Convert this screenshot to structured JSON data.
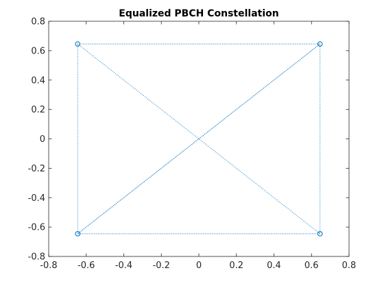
{
  "chart_data": {
    "type": "line",
    "title": "Equalized PBCH Constellation",
    "xlabel": "",
    "ylabel": "",
    "xlim": [
      -0.8,
      0.8
    ],
    "ylim": [
      -0.8,
      0.8
    ],
    "xticks": [
      -0.8,
      -0.6,
      -0.4,
      -0.2,
      0,
      0.2,
      0.4,
      0.6,
      0.8
    ],
    "yticks": [
      -0.8,
      -0.6,
      -0.4,
      -0.2,
      0,
      0.2,
      0.4,
      0.6,
      0.8
    ],
    "xtick_labels": [
      "-0.8",
      "-0.6",
      "-0.4",
      "-0.2",
      "0",
      "0.2",
      "0.4",
      "0.6",
      "0.8"
    ],
    "ytick_labels": [
      "-0.8",
      "-0.6",
      "-0.4",
      "-0.2",
      "0",
      "0.2",
      "0.4",
      "0.6",
      "0.8"
    ],
    "grid": false,
    "legend": "none",
    "series": [
      {
        "line_style": "dotted",
        "marker": "circle",
        "color": "#0072bd",
        "points": [
          [
            -0.6455,
            0.6455
          ],
          [
            0.6455,
            0.6455
          ],
          [
            -0.6455,
            -0.6455
          ],
          [
            0.6455,
            -0.6455
          ],
          [
            -0.6455,
            0.6455
          ],
          [
            -0.6455,
            -0.6455
          ],
          [
            0.6455,
            0.6455
          ],
          [
            0.6455,
            -0.6455
          ]
        ]
      }
    ]
  }
}
